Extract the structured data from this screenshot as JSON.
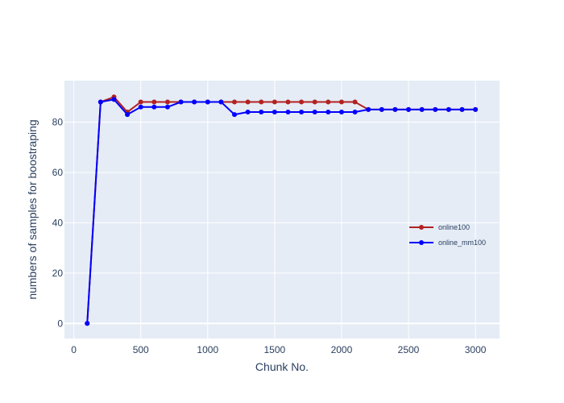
{
  "chart_data": {
    "type": "line",
    "title": "",
    "xlabel": "Chunk No.",
    "ylabel": "numbers of samples for boostraping",
    "xlim": [
      -70,
      3180
    ],
    "ylim": [
      -6,
      96.5
    ],
    "x_ticks": [
      0,
      500,
      1000,
      1500,
      2000,
      2500,
      3000
    ],
    "x_tick_labels": [
      "0",
      "500",
      "1000",
      "1500",
      "2000",
      "2500",
      "3000"
    ],
    "y_ticks": [
      0,
      20,
      40,
      60,
      80
    ],
    "y_tick_labels": [
      "0",
      "20",
      "40",
      "60",
      "80"
    ],
    "grid": true,
    "legend_position": "right",
    "colors": {
      "plot_background": "#e5ecf6",
      "grid": "#ffffff",
      "text": "#2a3f5f"
    },
    "series": [
      {
        "name": "online100",
        "color": "#b22222",
        "x": [
          100,
          200,
          300,
          400,
          500,
          600,
          700,
          800,
          900,
          1000,
          1100,
          1200,
          1300,
          1400,
          1500,
          1600,
          1700,
          1800,
          1900,
          2000,
          2100,
          2200,
          2300,
          2400,
          2500,
          2600,
          2700,
          2800,
          2900,
          3000
        ],
        "y": [
          0,
          88,
          90,
          84,
          88,
          88,
          88,
          88,
          88,
          88,
          88,
          88,
          88,
          88,
          88,
          88,
          88,
          88,
          88,
          88,
          88,
          85,
          85,
          85,
          85,
          85,
          85,
          85,
          85,
          85
        ]
      },
      {
        "name": "online_mm100",
        "color": "#0000ff",
        "x": [
          100,
          200,
          300,
          400,
          500,
          600,
          700,
          800,
          900,
          1000,
          1100,
          1200,
          1300,
          1400,
          1500,
          1600,
          1700,
          1800,
          1900,
          2000,
          2100,
          2200,
          2300,
          2400,
          2500,
          2600,
          2700,
          2800,
          2900,
          3000
        ],
        "y": [
          0,
          88,
          89,
          83,
          86,
          86,
          86,
          88,
          88,
          88,
          88,
          83,
          84,
          84,
          84,
          84,
          84,
          84,
          84,
          84,
          84,
          85,
          85,
          85,
          85,
          85,
          85,
          85,
          85,
          85
        ]
      }
    ]
  }
}
